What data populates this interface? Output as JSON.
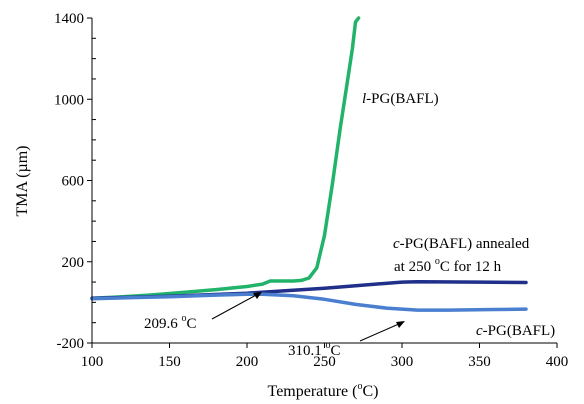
{
  "chart_data": {
    "type": "line",
    "xlabel": "Temperature (",
    "xlabel_sup": "o",
    "xlabel_end": "C)",
    "ylabel": "TMA (µm)",
    "xlim": [
      100,
      400
    ],
    "ylim": [
      -200,
      1400
    ],
    "x_ticks": [
      100,
      150,
      200,
      250,
      300,
      350,
      400
    ],
    "y_ticks": [
      -200,
      200,
      600,
      1000,
      1400
    ],
    "grid": false,
    "series": [
      {
        "color": "#22b36b",
        "points": [
          [
            100,
            20
          ],
          [
            120,
            28
          ],
          [
            140,
            38
          ],
          [
            160,
            50
          ],
          [
            180,
            63
          ],
          [
            200,
            78
          ],
          [
            210,
            90
          ],
          [
            215,
            105
          ],
          [
            220,
            105
          ],
          [
            230,
            105
          ],
          [
            235,
            108
          ],
          [
            240,
            120
          ],
          [
            245,
            170
          ],
          [
            250,
            330
          ],
          [
            255,
            580
          ],
          [
            260,
            850
          ],
          [
            265,
            1100
          ],
          [
            268,
            1250
          ],
          [
            270,
            1380
          ],
          [
            272,
            1420
          ]
        ]
      },
      {
        "color": "#1f2f8a",
        "points": [
          [
            100,
            20
          ],
          [
            150,
            30
          ],
          [
            200,
            45
          ],
          [
            250,
            70
          ],
          [
            300,
            100
          ],
          [
            310,
            102
          ],
          [
            350,
            100
          ],
          [
            380,
            98
          ]
        ]
      },
      {
        "color": "#4a7fd0",
        "points": [
          [
            100,
            18
          ],
          [
            150,
            28
          ],
          [
            180,
            36
          ],
          [
            200,
            40
          ],
          [
            210,
            40
          ],
          [
            230,
            33
          ],
          [
            250,
            15
          ],
          [
            270,
            -10
          ],
          [
            290,
            -28
          ],
          [
            310,
            -38
          ],
          [
            330,
            -38
          ],
          [
            360,
            -35
          ],
          [
            380,
            -33
          ]
        ]
      }
    ],
    "annotations": [
      {
        "id": "lpg",
        "italic": "l",
        "text": "-PG(BAFL)",
        "lines": []
      },
      {
        "id": "annealed",
        "italic": "c",
        "text": "-PG(BAFL) annealed",
        "line2": "at 250 ",
        "sup": "o",
        "line2_end": "C for 12 h"
      },
      {
        "id": "t1",
        "text": "209.6 ",
        "sup": "o",
        "end": "C"
      },
      {
        "id": "t2",
        "text": "310.1 ",
        "sup": "o",
        "end": "C"
      },
      {
        "id": "cpg",
        "italic": "c",
        "text": "-PG(BAFL)"
      }
    ]
  }
}
